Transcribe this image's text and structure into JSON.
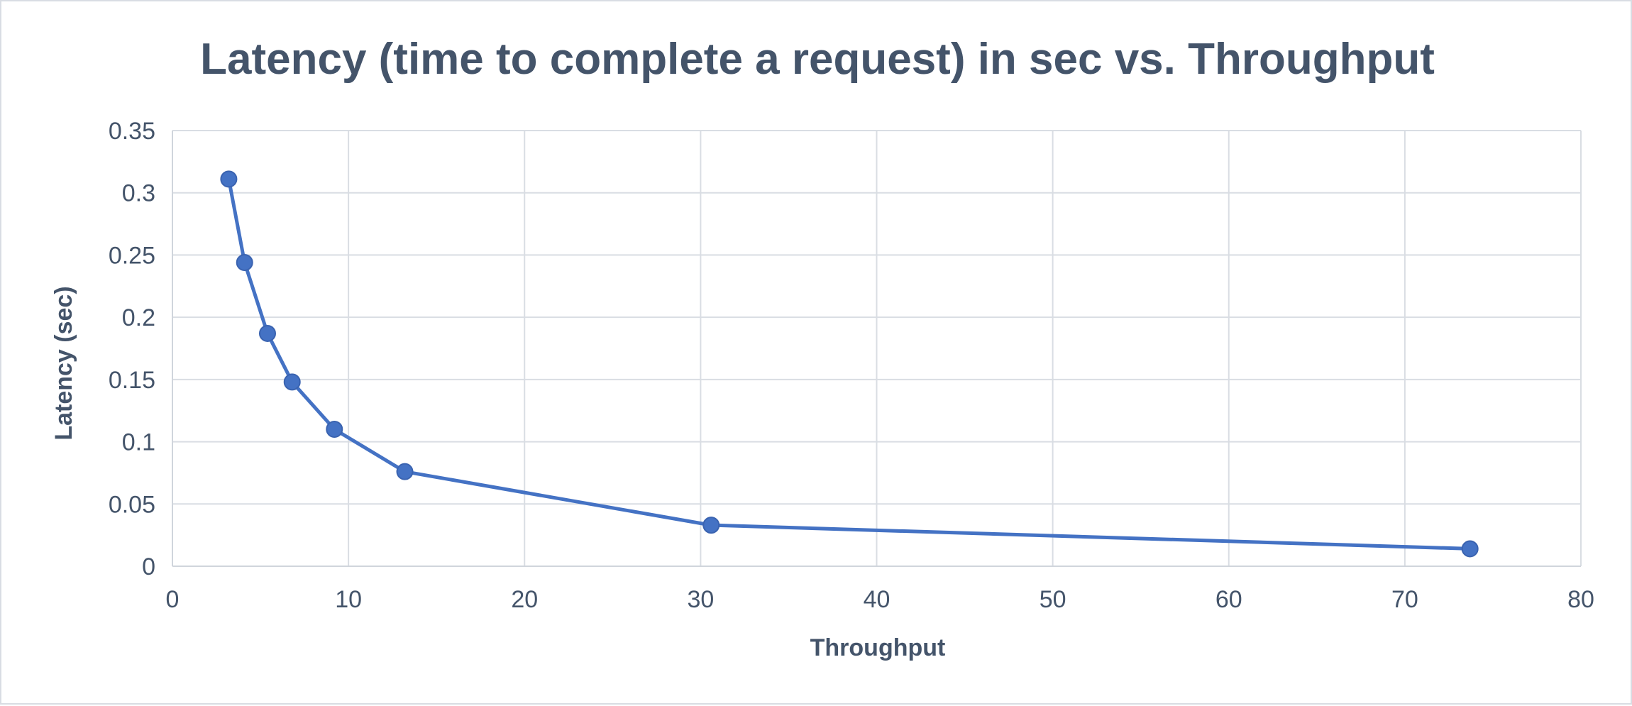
{
  "chart_data": {
    "type": "line",
    "title": "Latency (time to complete a request) in sec vs. Throughput",
    "xlabel": "Throughput",
    "ylabel": "Latency (sec)",
    "xlim": [
      0,
      80
    ],
    "ylim": [
      0,
      0.35
    ],
    "xticks": [
      0,
      10,
      20,
      30,
      40,
      50,
      60,
      70,
      80
    ],
    "yticks": [
      0,
      0.05,
      0.1,
      0.15,
      0.2,
      0.25,
      0.3,
      0.35
    ],
    "xtick_labels": [
      "0",
      "10",
      "20",
      "30",
      "40",
      "50",
      "60",
      "70",
      "80"
    ],
    "ytick_labels": [
      "0",
      "0.05",
      "0.1",
      "0.15",
      "0.2",
      "0.25",
      "0.3",
      "0.35"
    ],
    "grid": true,
    "legend": "none",
    "series": [
      {
        "color": "#4472c4",
        "marker": "circle",
        "x": [
          3.2,
          4.1,
          5.4,
          6.8,
          9.2,
          13.2,
          30.6,
          73.7
        ],
        "y": [
          0.311,
          0.244,
          0.187,
          0.148,
          0.11,
          0.076,
          0.033,
          0.014
        ]
      }
    ]
  }
}
